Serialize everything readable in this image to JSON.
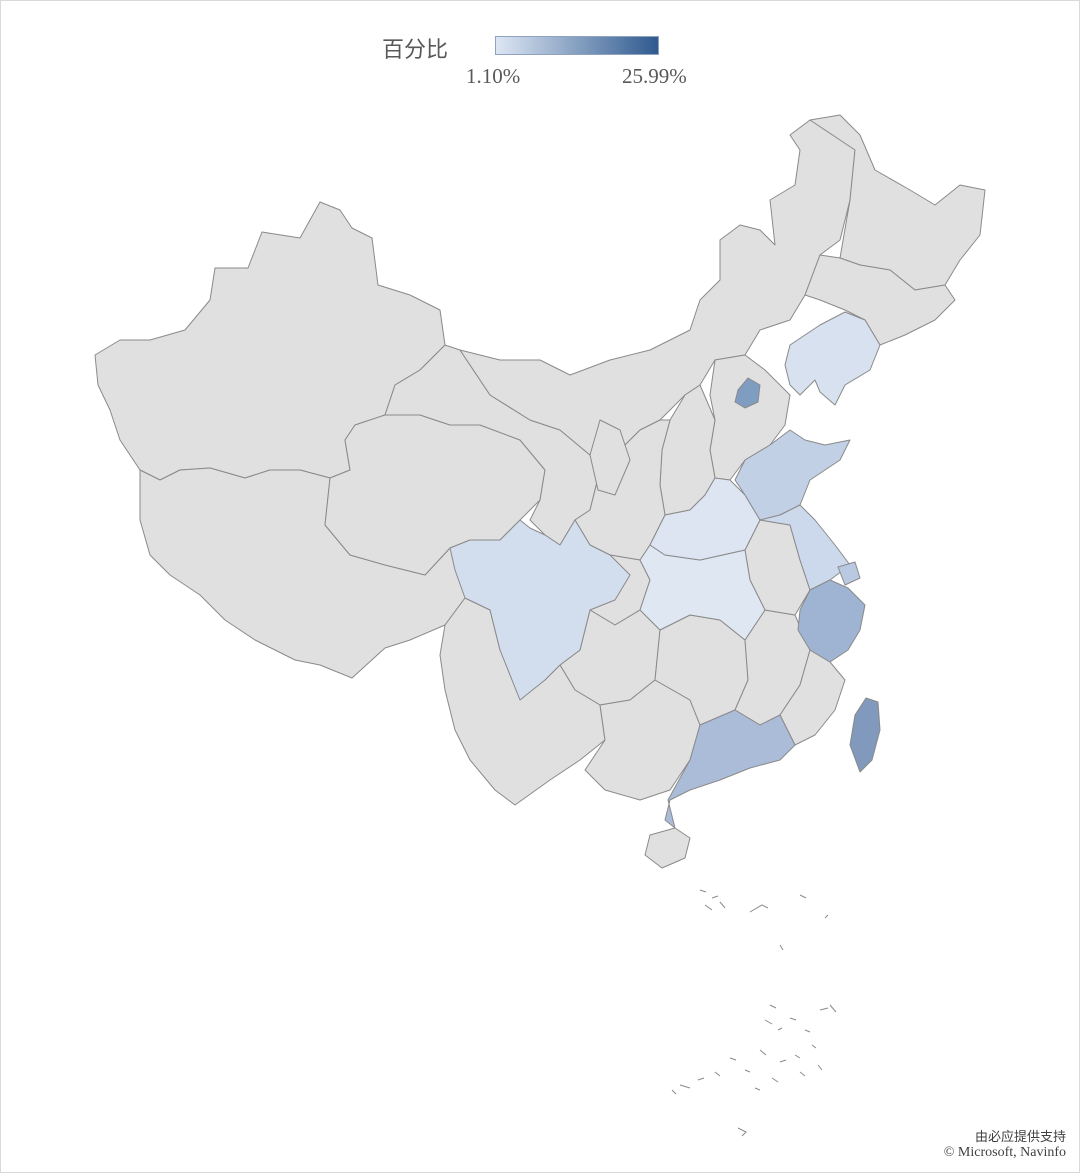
{
  "legend": {
    "title": "百分比",
    "min_label": "1.10%",
    "max_label": "25.99%",
    "color_low": "#dde6f3",
    "color_high": "#2f5a8f",
    "color_no_data": "#e0e0e0",
    "border_color": "#8a8a8a"
  },
  "credits": {
    "line1": "由必应提供支持",
    "line2": "© Microsoft, Navinfo"
  },
  "highlight_colors": {
    "beijing": "#7f9cc1",
    "liaoning": "#d8e1ef",
    "shandong": "#c2d0e5",
    "henan": "#dde5f2",
    "jiangsu": "#ccd8eb",
    "hubei": "#dfe7f3",
    "sichuan": "#d2ddee",
    "zhejiang": "#9fb4d2",
    "guangdong": "#aabcd8",
    "taiwan": "#8099bd",
    "shanghai": "#b9c9e1"
  }
}
